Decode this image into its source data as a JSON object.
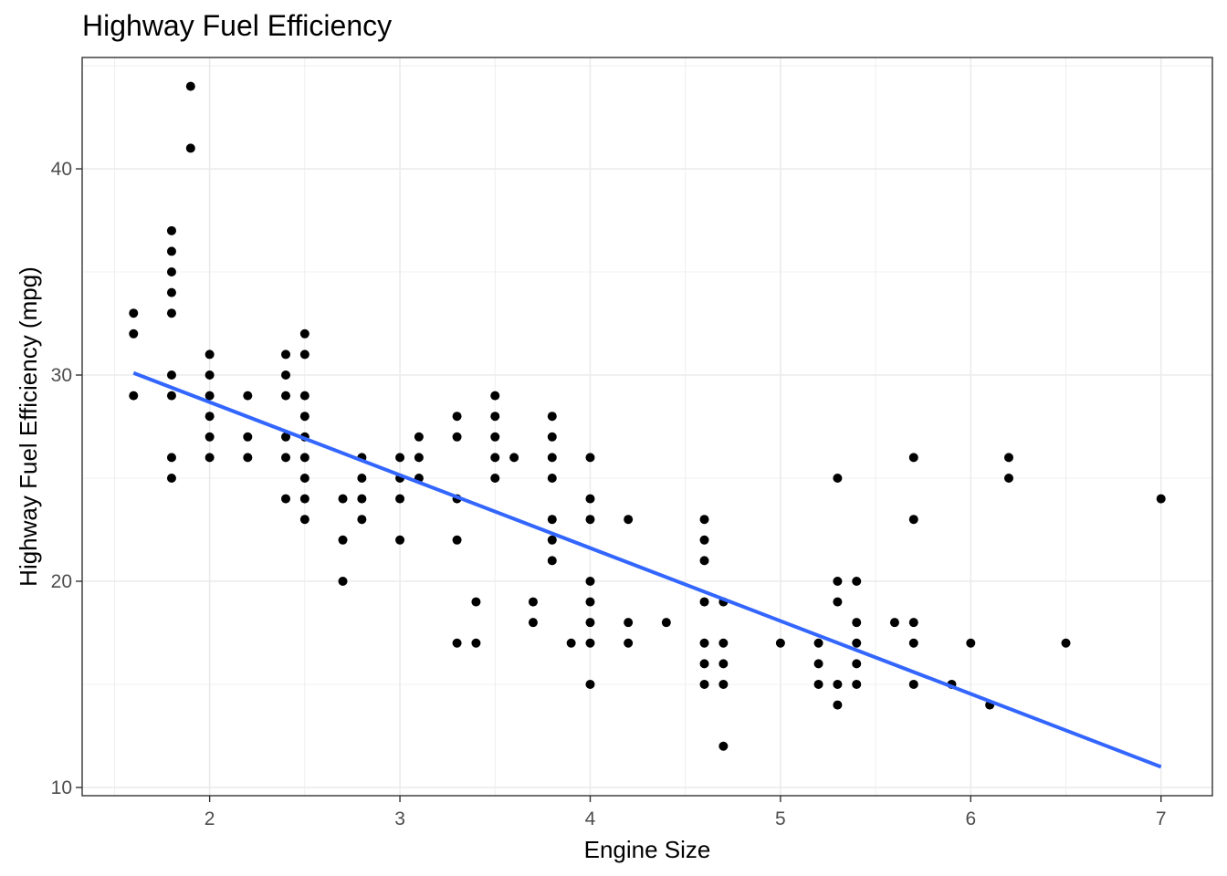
{
  "chart_data": {
    "type": "scatter",
    "title": "Highway Fuel Efficiency",
    "xlabel": "Engine Size",
    "ylabel": "Highway Fuel Efficiency (mpg)",
    "xlim": [
      1.33,
      7.27
    ],
    "ylim": [
      9.6,
      45.4
    ],
    "x_ticks": [
      2,
      3,
      4,
      5,
      6,
      7
    ],
    "y_ticks": [
      10,
      20,
      30,
      40
    ],
    "grid": true,
    "legend": "none",
    "points": [
      [
        1.6,
        33
      ],
      [
        1.6,
        32
      ],
      [
        1.6,
        29
      ],
      [
        1.8,
        37
      ],
      [
        1.8,
        36
      ],
      [
        1.8,
        35
      ],
      [
        1.8,
        34
      ],
      [
        1.8,
        33
      ],
      [
        1.8,
        30
      ],
      [
        1.8,
        29
      ],
      [
        1.8,
        26
      ],
      [
        1.8,
        25
      ],
      [
        1.9,
        44
      ],
      [
        1.9,
        41
      ],
      [
        2.0,
        31
      ],
      [
        2.0,
        30
      ],
      [
        2.0,
        29
      ],
      [
        2.0,
        28
      ],
      [
        2.0,
        27
      ],
      [
        2.0,
        26
      ],
      [
        2.2,
        29
      ],
      [
        2.2,
        27
      ],
      [
        2.2,
        26
      ],
      [
        2.4,
        31
      ],
      [
        2.4,
        30
      ],
      [
        2.4,
        29
      ],
      [
        2.4,
        27
      ],
      [
        2.4,
        26
      ],
      [
        2.4,
        24
      ],
      [
        2.5,
        32
      ],
      [
        2.5,
        31
      ],
      [
        2.5,
        29
      ],
      [
        2.5,
        28
      ],
      [
        2.5,
        27
      ],
      [
        2.5,
        26
      ],
      [
        2.5,
        25
      ],
      [
        2.5,
        24
      ],
      [
        2.5,
        23
      ],
      [
        2.7,
        24
      ],
      [
        2.7,
        22
      ],
      [
        2.7,
        20
      ],
      [
        2.8,
        26
      ],
      [
        2.8,
        25
      ],
      [
        2.8,
        24
      ],
      [
        2.8,
        23
      ],
      [
        3.0,
        26
      ],
      [
        3.0,
        25
      ],
      [
        3.0,
        24
      ],
      [
        3.0,
        22
      ],
      [
        3.1,
        27
      ],
      [
        3.1,
        26
      ],
      [
        3.1,
        25
      ],
      [
        3.3,
        28
      ],
      [
        3.3,
        27
      ],
      [
        3.3,
        24
      ],
      [
        3.3,
        22
      ],
      [
        3.3,
        17
      ],
      [
        3.4,
        19
      ],
      [
        3.4,
        17
      ],
      [
        3.5,
        29
      ],
      [
        3.5,
        28
      ],
      [
        3.5,
        27
      ],
      [
        3.5,
        26
      ],
      [
        3.5,
        25
      ],
      [
        3.6,
        26
      ],
      [
        3.7,
        19
      ],
      [
        3.7,
        18
      ],
      [
        3.8,
        28
      ],
      [
        3.8,
        27
      ],
      [
        3.8,
        26
      ],
      [
        3.8,
        25
      ],
      [
        3.8,
        23
      ],
      [
        3.8,
        22
      ],
      [
        3.8,
        21
      ],
      [
        3.9,
        17
      ],
      [
        4.0,
        26
      ],
      [
        4.0,
        24
      ],
      [
        4.0,
        23
      ],
      [
        4.0,
        20
      ],
      [
        4.0,
        19
      ],
      [
        4.0,
        18
      ],
      [
        4.0,
        17
      ],
      [
        4.0,
        15
      ],
      [
        4.2,
        23
      ],
      [
        4.2,
        18
      ],
      [
        4.2,
        17
      ],
      [
        4.4,
        18
      ],
      [
        4.6,
        23
      ],
      [
        4.6,
        22
      ],
      [
        4.6,
        21
      ],
      [
        4.6,
        19
      ],
      [
        4.6,
        17
      ],
      [
        4.6,
        16
      ],
      [
        4.6,
        15
      ],
      [
        4.7,
        19
      ],
      [
        4.7,
        17
      ],
      [
        4.7,
        16
      ],
      [
        4.7,
        15
      ],
      [
        4.7,
        12
      ],
      [
        5.0,
        17
      ],
      [
        5.2,
        17
      ],
      [
        5.2,
        16
      ],
      [
        5.2,
        15
      ],
      [
        5.3,
        25
      ],
      [
        5.3,
        20
      ],
      [
        5.3,
        19
      ],
      [
        5.3,
        15
      ],
      [
        5.3,
        14
      ],
      [
        5.4,
        20
      ],
      [
        5.4,
        18
      ],
      [
        5.4,
        17
      ],
      [
        5.4,
        16
      ],
      [
        5.4,
        15
      ],
      [
        5.6,
        18
      ],
      [
        5.7,
        26
      ],
      [
        5.7,
        23
      ],
      [
        5.7,
        18
      ],
      [
        5.7,
        17
      ],
      [
        5.7,
        15
      ],
      [
        5.9,
        15
      ],
      [
        6.0,
        17
      ],
      [
        6.1,
        14
      ],
      [
        6.2,
        26
      ],
      [
        6.2,
        25
      ],
      [
        6.5,
        17
      ],
      [
        7.0,
        24
      ]
    ],
    "trendline": {
      "type": "linear",
      "color": "#3366FF",
      "x": [
        1.6,
        7.0
      ],
      "y": [
        30.1,
        11.0
      ]
    },
    "colors": {
      "points": "#000000",
      "trendline": "#3366FF",
      "grid": "#EBEBEB",
      "panel_border": "#333333",
      "tick_label": "#4D4D4D"
    }
  }
}
